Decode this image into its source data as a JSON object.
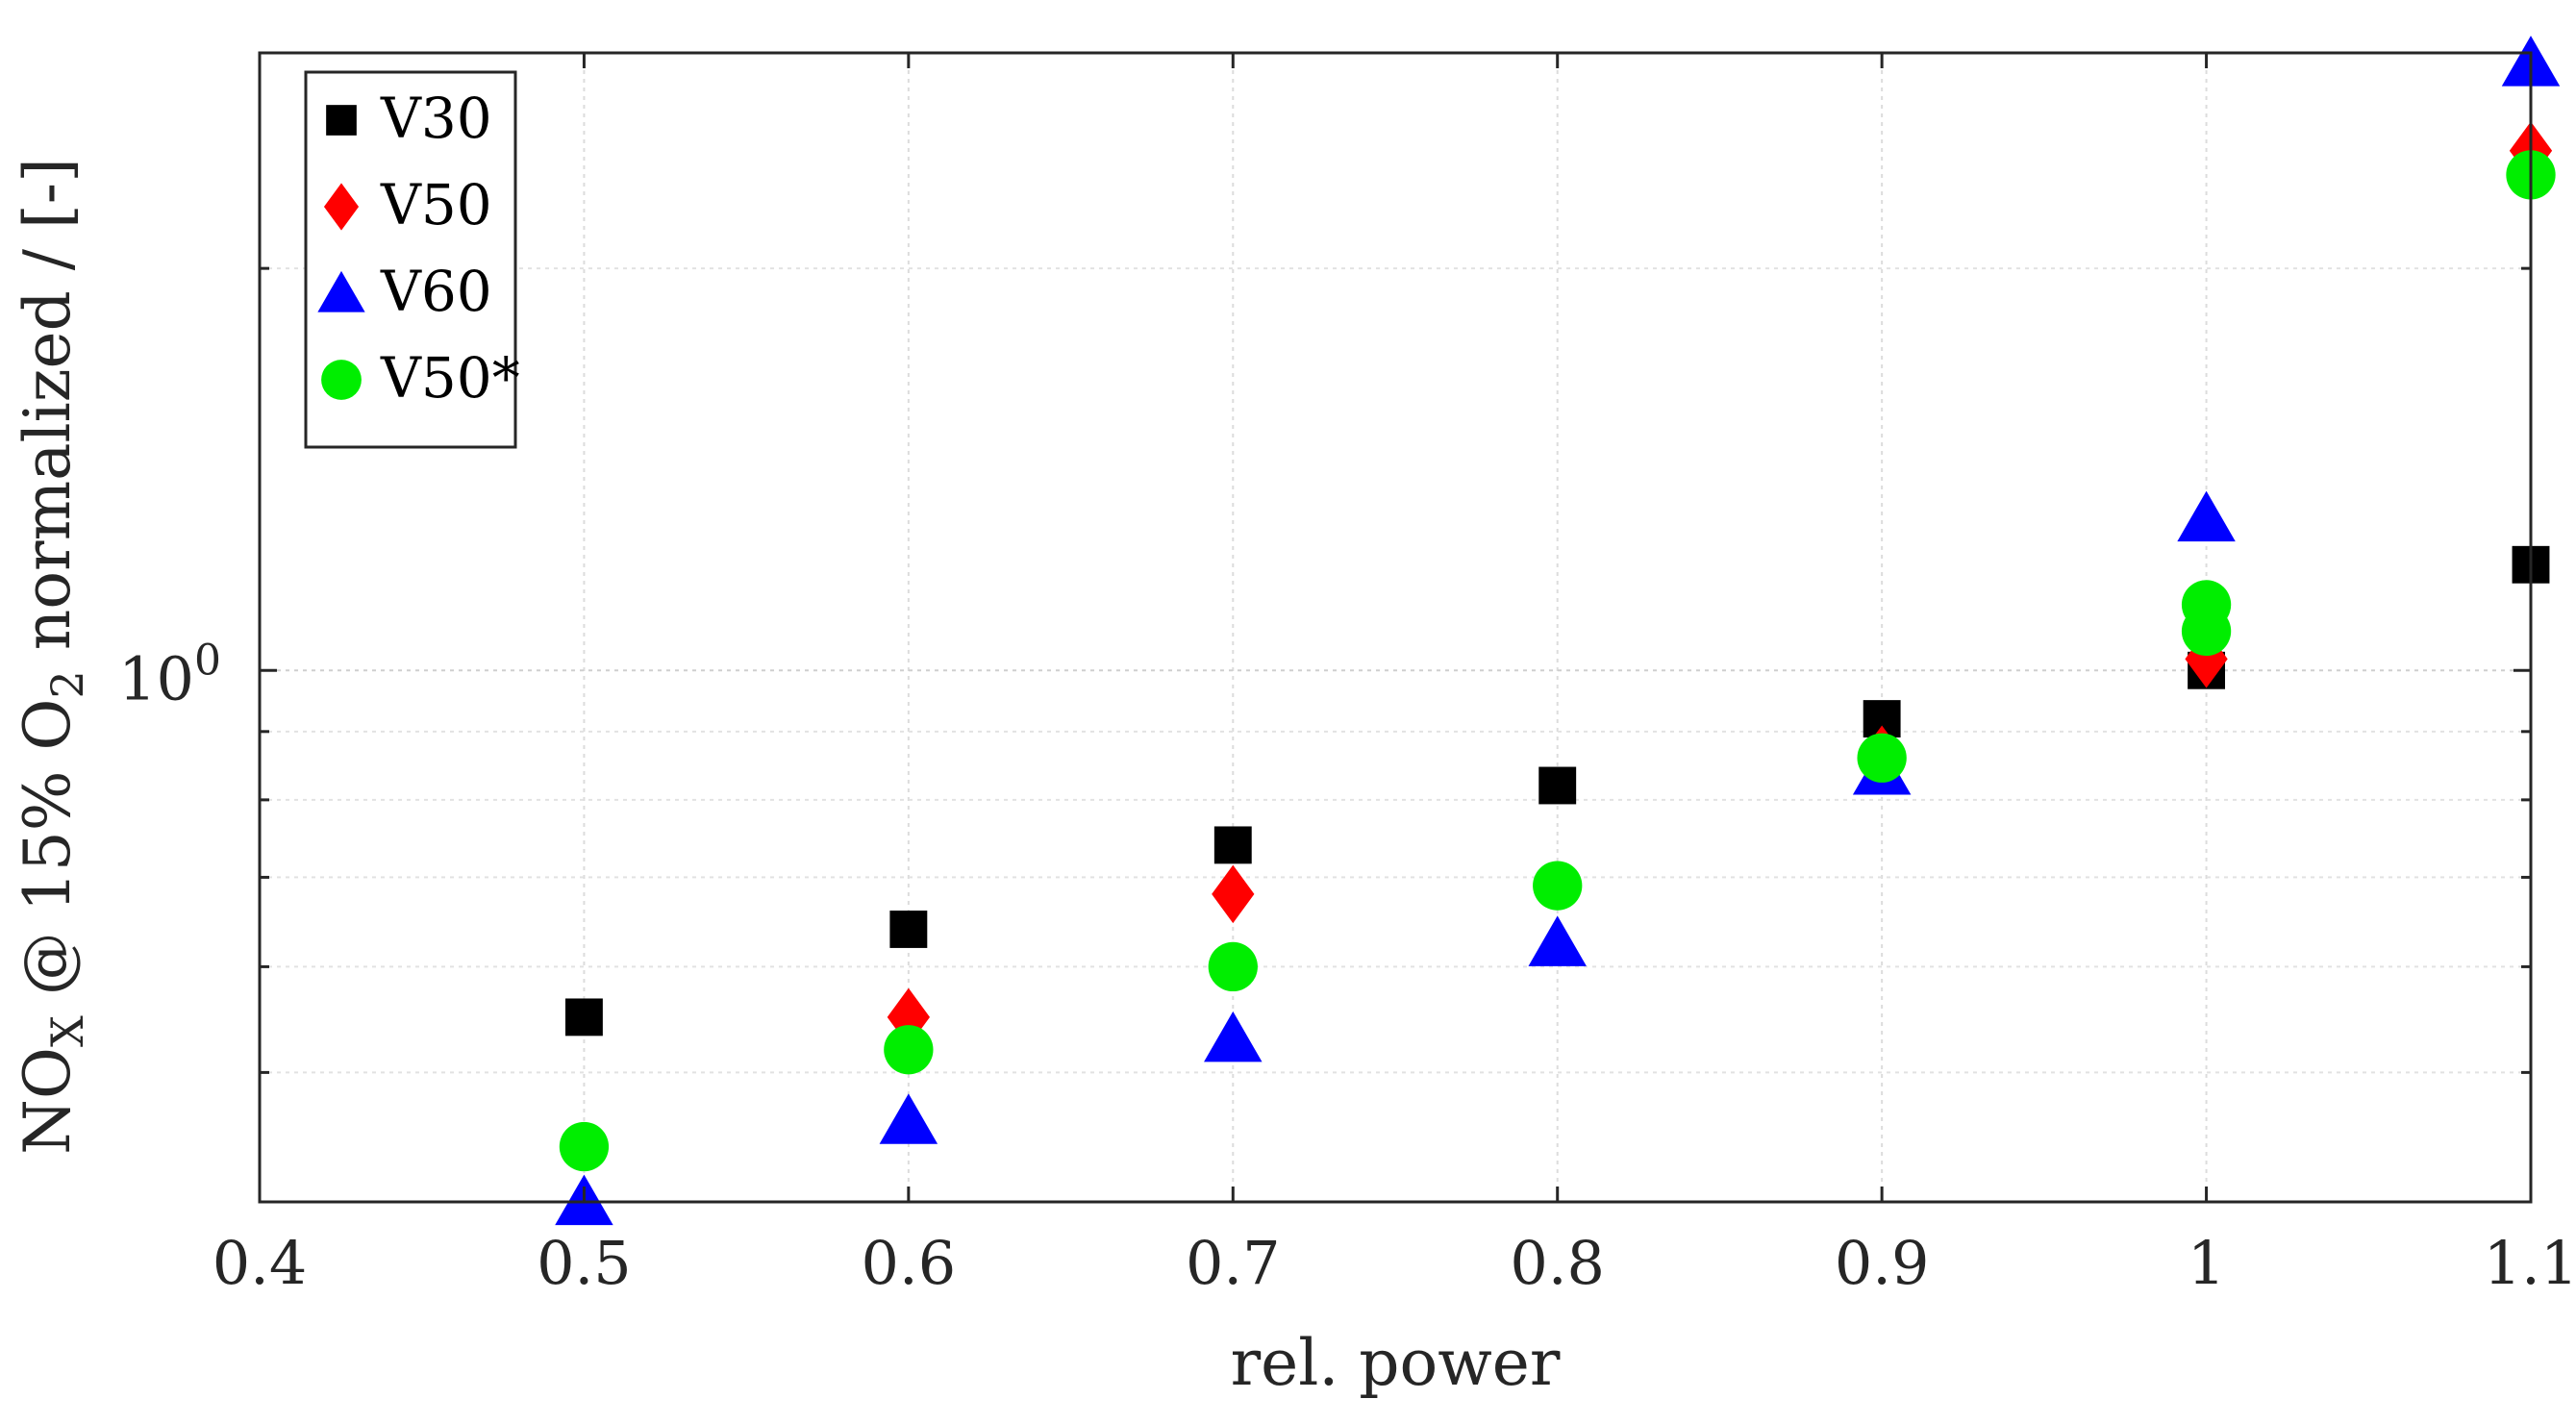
{
  "chart_data": {
    "type": "scatter",
    "title": "",
    "xlabel": "rel. power",
    "ylabel": {
      "parts": [
        "NO",
        "X",
        " @ 15% O",
        "2",
        " normalized / [-]"
      ]
    },
    "x_scale": "linear",
    "y_scale": "log",
    "xlim": [
      0.4,
      1.1
    ],
    "ylim": [
      0.4,
      2.9
    ],
    "x_ticks": [
      "0.4",
      "0.5",
      "0.6",
      "0.7",
      "0.8",
      "0.9",
      "1",
      "1.1"
    ],
    "y_tick_label": {
      "base": "10",
      "exponent": "0"
    },
    "grid": true,
    "legend_position": "top-left",
    "series": [
      {
        "name": "V30",
        "marker": "square",
        "color": "#000000",
        "x": [
          0.5,
          0.6,
          0.7,
          0.8,
          0.9,
          1.0,
          1.1
        ],
        "y": [
          0.55,
          0.64,
          0.74,
          0.82,
          0.92,
          1.0,
          1.2
        ]
      },
      {
        "name": "V50",
        "marker": "diamond",
        "color": "#ff0000",
        "x": [
          0.5,
          0.6,
          0.7,
          0.8,
          0.9,
          1.0,
          1.1
        ],
        "y": [
          null,
          0.55,
          0.68,
          null,
          0.865,
          1.02,
          2.45
        ]
      },
      {
        "name": "V60",
        "marker": "triangle",
        "color": "#0000ff",
        "x": [
          0.5,
          0.6,
          0.7,
          0.8,
          0.9,
          1.0,
          1.1
        ],
        "y": [
          0.4,
          0.46,
          0.53,
          0.625,
          0.84,
          1.3,
          2.85
        ]
      },
      {
        "name": "V50*",
        "marker": "circle",
        "color": "#00ee00",
        "x": [
          0.5,
          0.6,
          0.7,
          0.8,
          0.9,
          1.0,
          1.1
        ],
        "y": [
          0.44,
          0.52,
          0.6,
          0.69,
          0.86,
          1.12,
          2.35
        ]
      },
      {
        "name": "",
        "marker": "circle",
        "color": "#00ee00",
        "legend": false,
        "x": [
          1.0
        ],
        "y": [
          1.07
        ]
      }
    ]
  }
}
